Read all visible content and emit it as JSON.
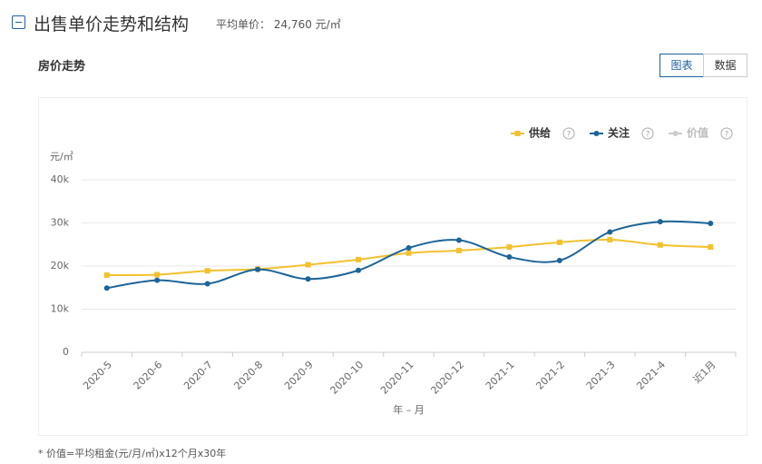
{
  "header": {
    "title": "出售单价走势和结构",
    "avg_label": "平均单价：",
    "avg_value": "24,760 元/㎡"
  },
  "section_title": "房价走势",
  "tabs": [
    "图表",
    "数据"
  ],
  "footnote": "* 价值=平均租金(元/月/㎡)x12个月x30年",
  "chart_data": {
    "type": "line",
    "ylabel": "元/㎡",
    "xlabel": "年 – 月",
    "categories": [
      "2020-5",
      "2020-6",
      "2020-7",
      "2020-8",
      "2020-9",
      "2020-10",
      "2020-11",
      "2020-12",
      "2021-1",
      "2021-2",
      "2021-3",
      "2021-4",
      "近1月"
    ],
    "series": [
      {
        "name": "供给",
        "color": "#f2c12e",
        "marker": "square",
        "values": [
          17900,
          18000,
          18900,
          19300,
          20300,
          21500,
          23000,
          23600,
          24400,
          25500,
          26100,
          24900,
          24400
        ]
      },
      {
        "name": "关注",
        "color": "#1d6498",
        "marker": "circle",
        "values": [
          14900,
          16700,
          15900,
          19200,
          17000,
          19000,
          24200,
          26000,
          22100,
          21300,
          27900,
          30300,
          29900
        ]
      },
      {
        "name": "价值",
        "color": "#cccccc",
        "marker": "circle",
        "disabled": true,
        "values": [
          null,
          null,
          null,
          null,
          null,
          null,
          null,
          null,
          null,
          null,
          null,
          null,
          null
        ]
      }
    ],
    "ylim": [
      0,
      40000
    ],
    "yticks": [
      0,
      {
        "value": 10000,
        "label": "10k"
      },
      {
        "value": 20000,
        "label": "20k"
      },
      {
        "value": 30000,
        "label": "30k"
      },
      {
        "value": 40000,
        "label": "40k"
      }
    ],
    "grid": true,
    "smooth": true,
    "legend": "top-right"
  }
}
